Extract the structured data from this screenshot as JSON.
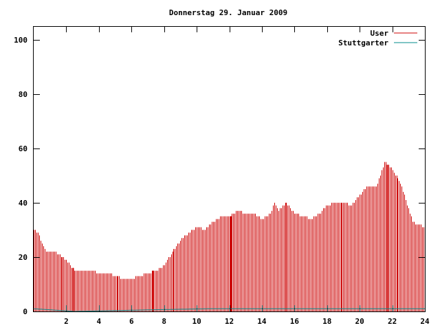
{
  "chart_data": {
    "type": "bar",
    "title": "Donnerstag 29. Januar 2009",
    "xlabel": "",
    "ylabel": "",
    "xlim": [
      0,
      24
    ],
    "ylim": [
      0,
      105
    ],
    "x_ticks": [
      2,
      4,
      6,
      8,
      10,
      12,
      14,
      16,
      18,
      20,
      22,
      24
    ],
    "y_ticks": [
      0,
      20,
      40,
      60,
      80,
      100
    ],
    "grid": false,
    "legend_position": "top-right",
    "colors": {
      "User": "#cc0000",
      "Stuttgarter": "#008b8b"
    },
    "series": [
      {
        "name": "User",
        "hour_values": [
          {
            "hour": 0.0,
            "value": 30
          },
          {
            "hour": 0.25,
            "value": 29
          },
          {
            "hour": 0.5,
            "value": 25
          },
          {
            "hour": 0.75,
            "value": 22
          },
          {
            "hour": 1.0,
            "value": 22
          },
          {
            "hour": 1.25,
            "value": 22
          },
          {
            "hour": 1.5,
            "value": 21
          },
          {
            "hour": 1.75,
            "value": 20
          },
          {
            "hour": 2.0,
            "value": 19
          },
          {
            "hour": 2.25,
            "value": 17
          },
          {
            "hour": 2.5,
            "value": 15
          },
          {
            "hour": 3.0,
            "value": 15
          },
          {
            "hour": 3.5,
            "value": 15
          },
          {
            "hour": 4.0,
            "value": 14
          },
          {
            "hour": 4.5,
            "value": 14
          },
          {
            "hour": 5.0,
            "value": 13
          },
          {
            "hour": 5.5,
            "value": 12
          },
          {
            "hour": 6.0,
            "value": 12
          },
          {
            "hour": 6.5,
            "value": 13
          },
          {
            "hour": 7.0,
            "value": 14
          },
          {
            "hour": 7.5,
            "value": 15
          },
          {
            "hour": 8.0,
            "value": 17
          },
          {
            "hour": 8.5,
            "value": 22
          },
          {
            "hour": 9.0,
            "value": 26
          },
          {
            "hour": 9.5,
            "value": 29
          },
          {
            "hour": 10.0,
            "value": 31
          },
          {
            "hour": 10.5,
            "value": 30
          },
          {
            "hour": 11.0,
            "value": 33
          },
          {
            "hour": 11.5,
            "value": 35
          },
          {
            "hour": 12.0,
            "value": 35
          },
          {
            "hour": 12.5,
            "value": 37
          },
          {
            "hour": 13.0,
            "value": 36
          },
          {
            "hour": 13.5,
            "value": 36
          },
          {
            "hour": 14.0,
            "value": 34
          },
          {
            "hour": 14.5,
            "value": 36
          },
          {
            "hour": 14.75,
            "value": 40
          },
          {
            "hour": 15.0,
            "value": 37
          },
          {
            "hour": 15.5,
            "value": 40
          },
          {
            "hour": 16.0,
            "value": 36
          },
          {
            "hour": 16.5,
            "value": 35
          },
          {
            "hour": 17.0,
            "value": 34
          },
          {
            "hour": 17.5,
            "value": 36
          },
          {
            "hour": 18.0,
            "value": 39
          },
          {
            "hour": 18.5,
            "value": 40
          },
          {
            "hour": 19.0,
            "value": 40
          },
          {
            "hour": 19.5,
            "value": 39
          },
          {
            "hour": 20.0,
            "value": 43
          },
          {
            "hour": 20.5,
            "value": 46
          },
          {
            "hour": 21.0,
            "value": 46
          },
          {
            "hour": 21.25,
            "value": 50
          },
          {
            "hour": 21.5,
            "value": 55
          },
          {
            "hour": 21.75,
            "value": 54
          },
          {
            "hour": 22.0,
            "value": 52
          },
          {
            "hour": 22.5,
            "value": 47
          },
          {
            "hour": 23.0,
            "value": 38
          },
          {
            "hour": 23.25,
            "value": 33
          },
          {
            "hour": 23.5,
            "value": 32
          },
          {
            "hour": 24.0,
            "value": 31
          }
        ]
      },
      {
        "name": "Stuttgarter",
        "hour_values": [
          {
            "hour": 0.0,
            "value": 1
          },
          {
            "hour": 2.5,
            "value": 0
          },
          {
            "hour": 10.6,
            "value": 1
          },
          {
            "hour": 24.0,
            "value": 1
          }
        ]
      }
    ],
    "highlight_hours": [
      2.4,
      7.3,
      12.1,
      21.7
    ]
  }
}
